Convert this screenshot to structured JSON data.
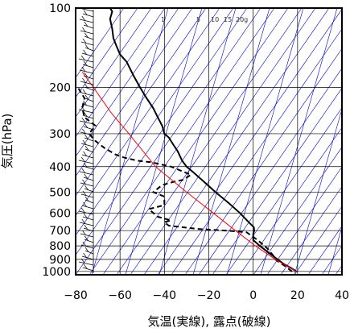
{
  "chart_data": {
    "type": "line",
    "subtype": "skew-t log-p diagram (upper-air sounding)",
    "title": "",
    "xlabel": "気温(実線), 露点(破線)",
    "ylabel": "気圧(hPa)",
    "xlim": [
      -80,
      40
    ],
    "ylim": [
      1030,
      100
    ],
    "y_scale": "log",
    "x_ticks": [
      -80,
      -60,
      -40,
      -20,
      0,
      20,
      40
    ],
    "y_ticks": [
      100,
      200,
      300,
      400,
      500,
      600,
      700,
      800,
      900,
      1000
    ],
    "x_tick_labels": [
      "−80",
      "−60",
      "−40",
      "−20",
      "0",
      "20",
      "40"
    ],
    "y_tick_labels": [
      "100",
      "200",
      "300",
      "400",
      "500",
      "600",
      "700",
      "800",
      "900",
      "1000"
    ],
    "mixing_ratio_labels": [
      "1",
      "5",
      "10",
      "15",
      "20g"
    ],
    "grid": true,
    "colors": {
      "temperature": "#000000",
      "dewpoint": "#000000",
      "parcel": "#ff0000",
      "isotherm": "#0000cc",
      "grid": "#000000",
      "wind": "#000000"
    },
    "series": [
      {
        "role": "temperature",
        "style": "solid",
        "points": [
          [
            1000,
            19.5
          ],
          [
            970,
            17
          ],
          [
            940,
            14
          ],
          [
            900,
            11
          ],
          [
            850,
            7
          ],
          [
            800,
            3
          ],
          [
            760,
            0
          ],
          [
            720,
            0
          ],
          [
            700,
            0.5
          ],
          [
            680,
            0.3
          ],
          [
            650,
            -2
          ],
          [
            600,
            -6
          ],
          [
            550,
            -11
          ],
          [
            500,
            -17
          ],
          [
            450,
            -23
          ],
          [
            420,
            -27
          ],
          [
            400,
            -30
          ],
          [
            380,
            -32
          ],
          [
            350,
            -34
          ],
          [
            330,
            -36
          ],
          [
            310,
            -38
          ],
          [
            300,
            -40
          ],
          [
            280,
            -41
          ],
          [
            260,
            -43
          ],
          [
            240,
            -45
          ],
          [
            220,
            -48
          ],
          [
            200,
            -51
          ],
          [
            180,
            -54
          ],
          [
            160,
            -57
          ],
          [
            150,
            -60
          ],
          [
            140,
            -61.5
          ],
          [
            130,
            -63
          ],
          [
            120,
            -63.5
          ],
          [
            110,
            -64.5
          ],
          [
            103,
            -63.5
          ],
          [
            100,
            -64.5
          ]
        ]
      },
      {
        "role": "dewpoint",
        "style": "dashed",
        "points": [
          [
            1000,
            17.5
          ],
          [
            950,
            14
          ],
          [
            920,
            11.5
          ],
          [
            900,
            10
          ],
          [
            870,
            9
          ],
          [
            850,
            8
          ],
          [
            820,
            6.5
          ],
          [
            800,
            5
          ],
          [
            760,
            2
          ],
          [
            730,
            -1
          ],
          [
            710,
            -3
          ],
          [
            700,
            -12
          ],
          [
            690,
            -25
          ],
          [
            670,
            -38
          ],
          [
            650,
            -40
          ],
          [
            640,
            -37
          ],
          [
            620,
            -43
          ],
          [
            600,
            -45
          ],
          [
            580,
            -47
          ],
          [
            560,
            -40
          ],
          [
            520,
            -40
          ],
          [
            500,
            -45
          ],
          [
            470,
            -41
          ],
          [
            455,
            -35
          ],
          [
            450,
            -32
          ],
          [
            430,
            -28
          ],
          [
            400,
            -37
          ],
          [
            385,
            -46
          ],
          [
            380,
            -52
          ],
          [
            370,
            -58
          ],
          [
            360,
            -62
          ],
          [
            340,
            -67
          ],
          [
            320,
            -71
          ],
          [
            300,
            -74
          ],
          [
            280,
            -71
          ],
          [
            260,
            -76
          ],
          [
            240,
            -77
          ],
          [
            220,
            -76
          ],
          [
            200,
            -79
          ]
        ]
      },
      {
        "role": "parcel",
        "style": "solid-red",
        "points": [
          [
            1000,
            19.5
          ],
          [
            900,
            10
          ],
          [
            800,
            1
          ],
          [
            700,
            -8
          ],
          [
            600,
            -18
          ],
          [
            500,
            -30
          ],
          [
            400,
            -44
          ],
          [
            300,
            -56
          ],
          [
            250,
            -64
          ],
          [
            200,
            -72
          ],
          [
            175,
            -77
          ]
        ]
      }
    ]
  }
}
